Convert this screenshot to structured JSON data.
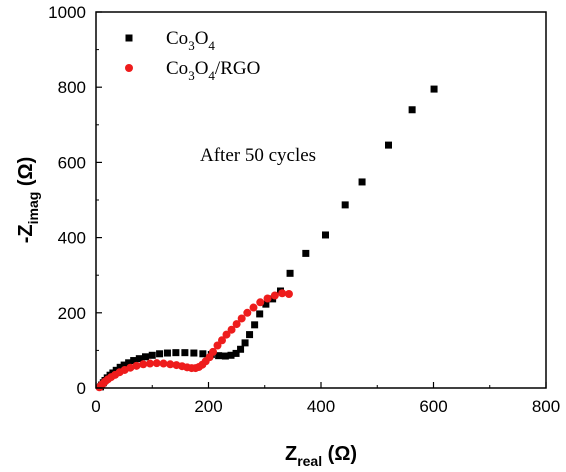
{
  "chart_data": {
    "type": "scatter",
    "xlabel": {
      "main": "Z",
      "sub": "real",
      "unit": " (Ω)"
    },
    "ylabel": {
      "prefix": "-Z",
      "sub": "imag",
      "unit": " (Ω)"
    },
    "xlim": [
      0,
      800
    ],
    "ylim": [
      0,
      1000
    ],
    "xticks": [
      0,
      200,
      400,
      600,
      800
    ],
    "yticks": [
      0,
      200,
      400,
      600,
      800,
      1000
    ],
    "grid": false,
    "legend_position": "top-left",
    "annotation": "After 50 cycles",
    "series": [
      {
        "name": "Co3O4",
        "legend": [
          {
            "t": "Co",
            "sub": false
          },
          {
            "t": "3",
            "sub": true
          },
          {
            "t": "O",
            "sub": false
          },
          {
            "t": "4",
            "sub": true
          }
        ],
        "color": "#000000",
        "marker": "square",
        "points": [
          [
            8,
            3
          ],
          [
            10,
            8
          ],
          [
            13,
            14
          ],
          [
            16,
            20
          ],
          [
            20,
            27
          ],
          [
            25,
            34
          ],
          [
            30,
            40
          ],
          [
            36,
            47
          ],
          [
            43,
            55
          ],
          [
            50,
            61
          ],
          [
            58,
            67
          ],
          [
            67,
            73
          ],
          [
            77,
            78
          ],
          [
            88,
            83
          ],
          [
            100,
            87
          ],
          [
            113,
            91
          ],
          [
            127,
            93
          ],
          [
            142,
            94
          ],
          [
            158,
            94
          ],
          [
            174,
            93
          ],
          [
            190,
            91
          ],
          [
            205,
            89
          ],
          [
            218,
            86
          ],
          [
            230,
            85
          ],
          [
            240,
            87
          ],
          [
            249,
            92
          ],
          [
            257,
            103
          ],
          [
            265,
            120
          ],
          [
            273,
            142
          ],
          [
            282,
            168
          ],
          [
            291,
            197
          ],
          [
            302,
            223
          ],
          [
            314,
            237
          ],
          [
            328,
            258
          ],
          [
            345,
            305
          ],
          [
            373,
            358
          ],
          [
            408,
            407
          ],
          [
            443,
            487
          ],
          [
            473,
            548
          ],
          [
            520,
            646
          ],
          [
            562,
            740
          ],
          [
            601,
            795
          ]
        ]
      },
      {
        "name": "Co3O4/RGO",
        "legend": [
          {
            "t": "Co",
            "sub": false
          },
          {
            "t": "3",
            "sub": true
          },
          {
            "t": "O",
            "sub": false
          },
          {
            "t": "4",
            "sub": true
          },
          {
            "t": "/RGO",
            "sub": false
          }
        ],
        "color": "#ee1c1c",
        "marker": "circle",
        "points": [
          [
            6,
            2
          ],
          [
            9,
            6
          ],
          [
            12,
            11
          ],
          [
            16,
            17
          ],
          [
            21,
            23
          ],
          [
            27,
            29
          ],
          [
            34,
            35
          ],
          [
            42,
            42
          ],
          [
            51,
            48
          ],
          [
            61,
            54
          ],
          [
            72,
            59
          ],
          [
            84,
            63
          ],
          [
            96,
            65
          ],
          [
            108,
            66
          ],
          [
            120,
            65
          ],
          [
            132,
            63
          ],
          [
            143,
            61
          ],
          [
            153,
            58
          ],
          [
            162,
            55
          ],
          [
            170,
            53
          ],
          [
            177,
            53
          ],
          [
            183,
            56
          ],
          [
            189,
            62
          ],
          [
            195,
            71
          ],
          [
            202,
            82
          ],
          [
            208,
            96
          ],
          [
            216,
            113
          ],
          [
            224,
            127
          ],
          [
            232,
            142
          ],
          [
            241,
            155
          ],
          [
            250,
            170
          ],
          [
            259,
            185
          ],
          [
            269,
            200
          ],
          [
            280,
            214
          ],
          [
            292,
            228
          ],
          [
            305,
            238
          ],
          [
            318,
            246
          ],
          [
            331,
            252
          ],
          [
            343,
            250
          ]
        ]
      }
    ]
  }
}
